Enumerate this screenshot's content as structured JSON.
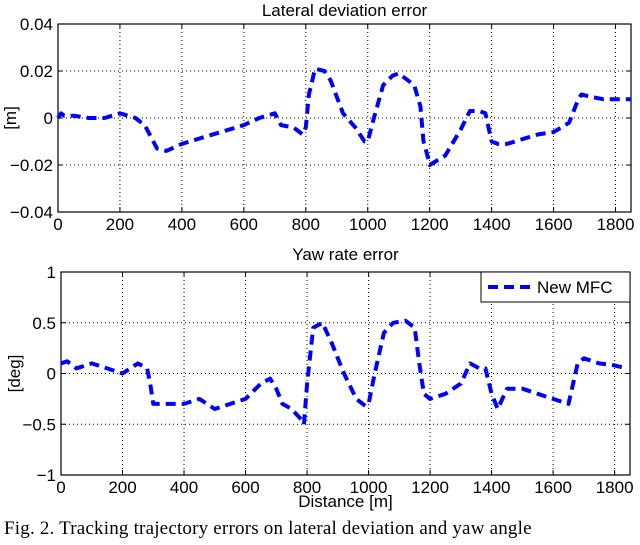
{
  "chart_data": [
    {
      "type": "line",
      "title": "Lateral deviation error",
      "xlabel": "",
      "ylabel": "[m]",
      "xlim": [
        0,
        1850
      ],
      "ylim": [
        -0.04,
        0.04
      ],
      "xticks": [
        0,
        200,
        400,
        600,
        800,
        1000,
        1200,
        1400,
        1600,
        1800
      ],
      "yticks": [
        -0.04,
        -0.02,
        0,
        0.02,
        0.04
      ],
      "ytick_labels": [
        "−0.04",
        "−0.02",
        "0",
        "0.02",
        "0.04"
      ],
      "grid": true,
      "series": [
        {
          "name": "New MFC",
          "style": "dashed",
          "color": "#0000ff",
          "x": [
            0,
            10,
            20,
            50,
            100,
            150,
            200,
            250,
            280,
            300,
            320,
            350,
            400,
            450,
            500,
            550,
            600,
            650,
            700,
            720,
            760,
            790,
            800,
            810,
            830,
            860,
            880,
            920,
            960,
            990,
            1000,
            1020,
            1050,
            1080,
            1100,
            1150,
            1170,
            1180,
            1195,
            1200,
            1250,
            1300,
            1330,
            1360,
            1380,
            1400,
            1420,
            1450,
            1500,
            1550,
            1600,
            1650,
            1680,
            1690,
            1720,
            1760,
            1800,
            1850
          ],
          "values": [
            0,
            0.002,
            0.001,
            0.001,
            0,
            0,
            0.002,
            0,
            -0.003,
            -0.008,
            -0.013,
            -0.014,
            -0.011,
            -0.009,
            -0.007,
            -0.005,
            -0.003,
            0,
            0.002,
            -0.003,
            -0.004,
            -0.007,
            -0.004,
            0.01,
            0.021,
            0.02,
            0.016,
            0.002,
            -0.004,
            -0.01,
            -0.01,
            0,
            0.014,
            0.018,
            0.019,
            0.014,
            0.005,
            -0.01,
            -0.017,
            -0.02,
            -0.016,
            -0.005,
            0.003,
            0.003,
            0.002,
            -0.01,
            -0.011,
            -0.011,
            -0.009,
            -0.007,
            -0.006,
            -0.002,
            0.008,
            0.01,
            0.009,
            0.008,
            0.008,
            0.008
          ]
        }
      ]
    },
    {
      "type": "line",
      "title": "Yaw rate error",
      "xlabel": "Distance [m]",
      "ylabel": "[deg]",
      "xlim": [
        0,
        1850
      ],
      "ylim": [
        -1,
        1
      ],
      "xticks": [
        0,
        200,
        400,
        600,
        800,
        1000,
        1200,
        1400,
        1600,
        1800
      ],
      "yticks": [
        -1,
        -0.5,
        0,
        0.5,
        1
      ],
      "ytick_labels": [
        "−1",
        "−0.5",
        "0",
        "0.5",
        "1"
      ],
      "grid": true,
      "legend": {
        "position": "upper right",
        "entries": [
          "New MFC"
        ]
      },
      "series": [
        {
          "name": "New MFC",
          "style": "dashed",
          "color": "#0000ff",
          "x": [
            0,
            20,
            50,
            100,
            150,
            200,
            250,
            280,
            290,
            300,
            350,
            400,
            450,
            500,
            550,
            600,
            650,
            680,
            700,
            720,
            750,
            780,
            790,
            800,
            820,
            850,
            880,
            920,
            960,
            990,
            1000,
            1020,
            1050,
            1080,
            1120,
            1150,
            1165,
            1180,
            1200,
            1250,
            1300,
            1330,
            1360,
            1380,
            1400,
            1420,
            1450,
            1500,
            1550,
            1600,
            1650,
            1680,
            1700,
            1750,
            1800,
            1840
          ],
          "values": [
            0.1,
            0.12,
            0.05,
            0.1,
            0.05,
            0,
            0.1,
            0.05,
            -0.1,
            -0.3,
            -0.3,
            -0.3,
            -0.25,
            -0.35,
            -0.3,
            -0.25,
            -0.1,
            -0.05,
            -0.15,
            -0.3,
            -0.35,
            -0.45,
            -0.5,
            -0.1,
            0.45,
            0.5,
            0.3,
            0,
            -0.25,
            -0.32,
            -0.3,
            0,
            0.4,
            0.5,
            0.52,
            0.45,
            0.1,
            -0.2,
            -0.25,
            -0.2,
            -0.1,
            0.1,
            0.05,
            0.05,
            -0.2,
            -0.35,
            -0.15,
            -0.15,
            -0.2,
            -0.25,
            -0.3,
            0.1,
            0.15,
            0.1,
            0.08,
            0.05
          ]
        }
      ]
    }
  ],
  "figure": {
    "caption": "Fig. 2.    Tracking trajectory errors on lateral deviation and yaw angle"
  }
}
